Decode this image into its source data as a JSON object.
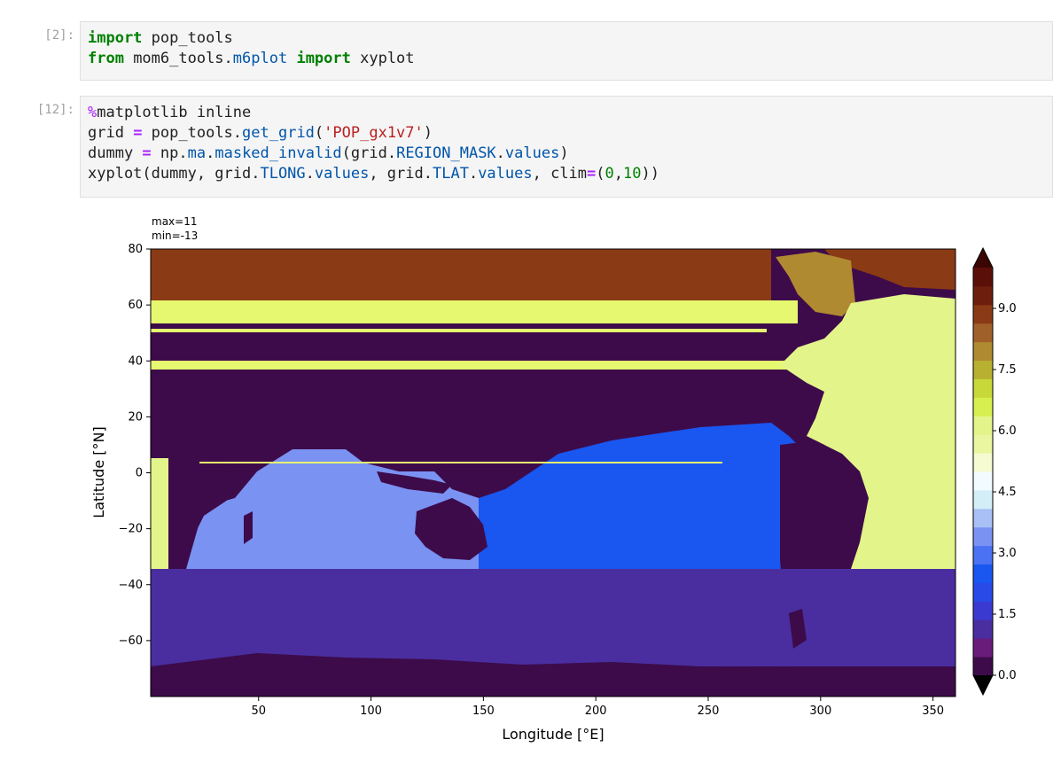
{
  "cells": [
    {
      "prompt": "[2]:",
      "lines": [
        [
          {
            "t": "import",
            "c": "kw"
          },
          {
            "t": " pop_tools",
            "c": ""
          }
        ],
        [
          {
            "t": "from",
            "c": "kw"
          },
          {
            "t": " mom6_tools.",
            "c": ""
          },
          {
            "t": "m6plot",
            "c": "fn"
          },
          {
            "t": " ",
            "c": ""
          },
          {
            "t": "import",
            "c": "kw"
          },
          {
            "t": " xyplot",
            "c": ""
          }
        ]
      ]
    },
    {
      "prompt": "[12]:",
      "lines": [
        [
          {
            "t": "%",
            "c": "magic"
          },
          {
            "t": "matplotlib inline",
            "c": ""
          }
        ],
        [
          {
            "t": "grid ",
            "c": ""
          },
          {
            "t": "=",
            "c": "op"
          },
          {
            "t": " pop_tools.",
            "c": ""
          },
          {
            "t": "get_grid",
            "c": "fn"
          },
          {
            "t": "(",
            "c": ""
          },
          {
            "t": "'POP_gx1v7'",
            "c": "str"
          },
          {
            "t": ")",
            "c": ""
          }
        ],
        [
          {
            "t": "dummy ",
            "c": ""
          },
          {
            "t": "=",
            "c": "op"
          },
          {
            "t": " np.",
            "c": ""
          },
          {
            "t": "ma",
            "c": "fn"
          },
          {
            "t": ".",
            "c": ""
          },
          {
            "t": "masked_invalid",
            "c": "fn"
          },
          {
            "t": "(grid.",
            "c": ""
          },
          {
            "t": "REGION_MASK",
            "c": "fn"
          },
          {
            "t": ".",
            "c": ""
          },
          {
            "t": "values",
            "c": "fn"
          },
          {
            "t": ")",
            "c": ""
          }
        ],
        [
          {
            "t": "xyplot(dummy, grid.",
            "c": ""
          },
          {
            "t": "TLONG",
            "c": "fn"
          },
          {
            "t": ".",
            "c": ""
          },
          {
            "t": "values",
            "c": "fn"
          },
          {
            "t": ", grid.",
            "c": ""
          },
          {
            "t": "TLAT",
            "c": "fn"
          },
          {
            "t": ".",
            "c": ""
          },
          {
            "t": "values",
            "c": "fn"
          },
          {
            "t": ", clim",
            "c": ""
          },
          {
            "t": "=",
            "c": "op"
          },
          {
            "t": "(",
            "c": ""
          },
          {
            "t": "0",
            "c": "num"
          },
          {
            "t": ",",
            "c": ""
          },
          {
            "t": "10",
            "c": "num"
          },
          {
            "t": "))",
            "c": ""
          }
        ]
      ]
    }
  ],
  "plot": {
    "annotation_max": "max=11",
    "annotation_min": "min=-13",
    "xlabel": "Longitude [°E]",
    "ylabel": "Latitude [°N]",
    "xlim": [
      2,
      360
    ],
    "ylim": [
      -80,
      80
    ],
    "xticks": [
      50,
      100,
      150,
      200,
      250,
      300,
      350
    ],
    "yticks": [
      80,
      60,
      40,
      20,
      0,
      -20,
      -40,
      -60
    ],
    "colorbar_ticks": [
      "9.0",
      "7.5",
      "6.0",
      "4.5",
      "3.0",
      "1.5",
      "0.0"
    ],
    "colorbar_tick_values": [
      9.0,
      7.5,
      6.0,
      4.5,
      3.0,
      1.5,
      0.0
    ],
    "clim": [
      0,
      10
    ],
    "colors": {
      "land": "#3d0b4a",
      "pacific": "#1a56f0",
      "indian": "#7a92f2",
      "southern": "#4a2ea0",
      "atlantic": "#e3f58a",
      "arctic": "#8a3a14",
      "nordic": "#b08a30",
      "yellow_strip": "#e6f870"
    }
  }
}
